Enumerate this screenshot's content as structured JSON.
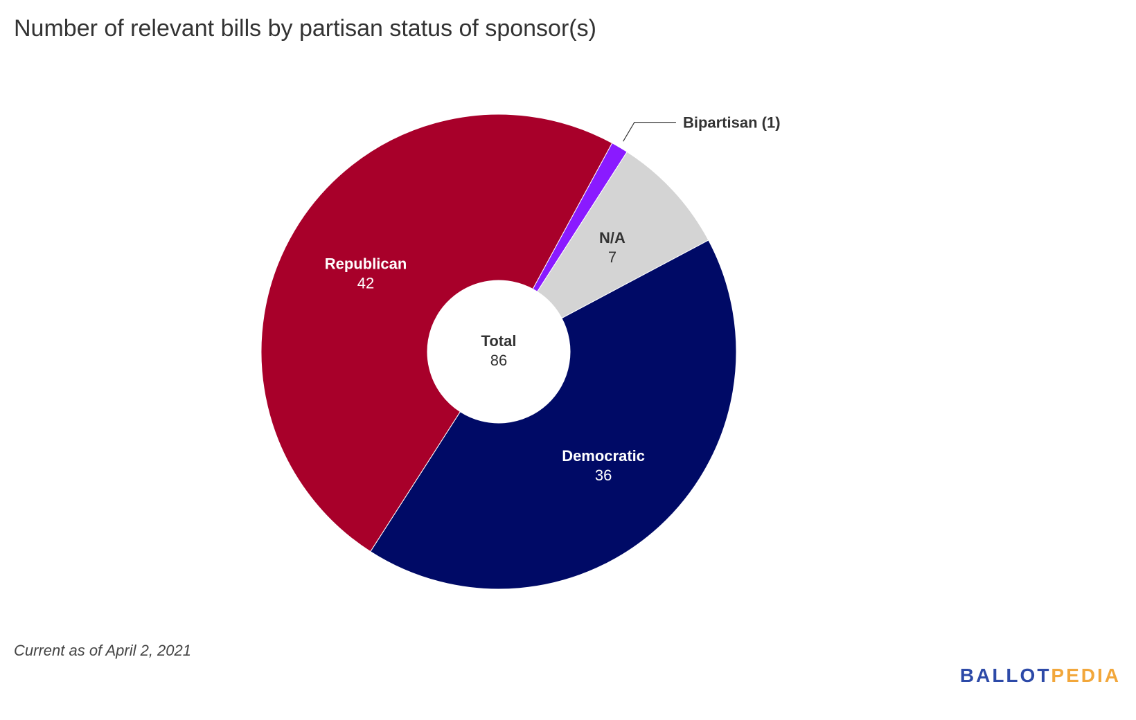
{
  "title": "Number of relevant bills by partisan status of sponsor(s)",
  "footnote": "Current as of April 2, 2021",
  "logo": "BALLOTPEDIA",
  "logo_parts": {
    "first": "BALLOT",
    "second": "PEDIA"
  },
  "colors": {
    "republican": "#a8002a",
    "bipartisan": "#8a1aff",
    "na": "#d4d4d4",
    "democratic": "#000a66",
    "logo_blue": "#2d4aa8",
    "logo_gold": "#f2a73b"
  },
  "chart_data": {
    "type": "pie",
    "donut": true,
    "start_angle_deg": -61.5,
    "center": {
      "label": "Total",
      "value": "86"
    },
    "slices": [
      {
        "label": "Bipartisan",
        "value": 1,
        "display": "Bipartisan (1)",
        "callout": true,
        "color": "#8a1aff",
        "label_color": "#333333"
      },
      {
        "label": "N/A",
        "value": 7,
        "display_value": "7",
        "color": "#d4d4d4",
        "label_color": "#333333"
      },
      {
        "label": "Democratic",
        "value": 36,
        "display_value": "36",
        "color": "#000a66",
        "label_color": "#ffffff"
      },
      {
        "label": "Republican",
        "value": 42,
        "display_value": "42",
        "color": "#a8002a",
        "label_color": "#ffffff"
      }
    ]
  }
}
